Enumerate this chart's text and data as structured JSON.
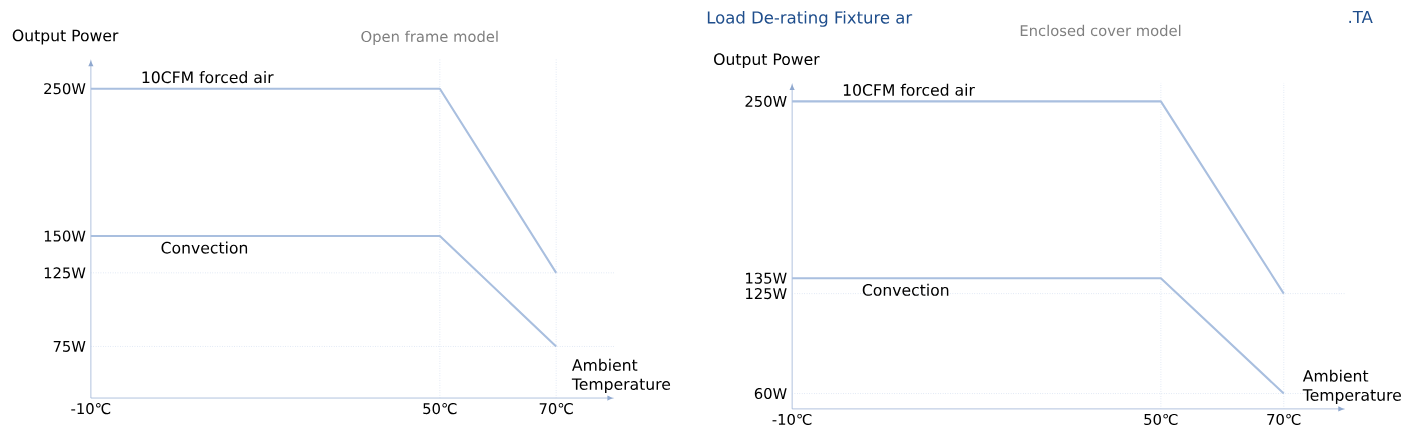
{
  "chart_data": [
    {
      "type": "line",
      "subtitle": "Open frame model",
      "xlabel": "Ambient Temperature",
      "ylabel": "Output Power",
      "xlim": [
        -10,
        80
      ],
      "ylim": [
        40,
        270
      ],
      "xticks": [
        {
          "value": -10,
          "label": "-10℃"
        },
        {
          "value": 50,
          "label": "50℃"
        },
        {
          "value": 70,
          "label": "70℃"
        }
      ],
      "yticks": [
        {
          "value": 75,
          "label": "75W"
        },
        {
          "value": 125,
          "label": "125W"
        },
        {
          "value": 150,
          "label": "150W"
        },
        {
          "value": 250,
          "label": "250W"
        }
      ],
      "x": [
        -10,
        50,
        70
      ],
      "series": [
        {
          "name": "10CFM forced air",
          "color": "#a9bfdf",
          "values": [
            250,
            250,
            125
          ]
        },
        {
          "name": "Convection",
          "color": "#a9bfdf",
          "values": [
            150,
            150,
            75
          ]
        }
      ],
      "ref_lines": [
        {
          "axis": "y",
          "value": 125,
          "color": "#c5d3ea",
          "line_style": "dotted"
        },
        {
          "axis": "y",
          "value": 75,
          "color": "#c5d3ea",
          "line_style": "dotted"
        },
        {
          "axis": "x",
          "value": 50,
          "color": "#c5d3ea",
          "line_style": "dotted"
        },
        {
          "axis": "x",
          "value": 70,
          "color": "#c5d3ea",
          "line_style": "dotted"
        }
      ]
    },
    {
      "type": "line",
      "title": "Load De-rating Fixture ar",
      "subtitle": "Enclosed cover model",
      "annotations": [
        ".TA"
      ],
      "xlabel": "Ambient Temperature",
      "ylabel": "Output Power",
      "xlim": [
        -10,
        80
      ],
      "ylim": [
        50,
        262
      ],
      "xticks": [
        {
          "value": -10,
          "label": "-10℃"
        },
        {
          "value": 50,
          "label": "50℃"
        },
        {
          "value": 70,
          "label": "70℃"
        }
      ],
      "yticks": [
        {
          "value": 60,
          "label": "60W"
        },
        {
          "value": 125,
          "label": "125W"
        },
        {
          "value": 135,
          "label": "135W"
        },
        {
          "value": 250,
          "label": "250W"
        }
      ],
      "x": [
        -10,
        50,
        70
      ],
      "series": [
        {
          "name": "10CFM forced air",
          "color": "#a9bfdf",
          "values": [
            250,
            250,
            125
          ]
        },
        {
          "name": "Convection",
          "color": "#a9bfdf",
          "values": [
            135,
            135,
            60
          ]
        }
      ],
      "ref_lines": [
        {
          "axis": "y",
          "value": 125,
          "color": "#c5d3ea",
          "line_style": "dotted"
        },
        {
          "axis": "y",
          "value": 60,
          "color": "#c5d3ea",
          "line_style": "dotted"
        },
        {
          "axis": "x",
          "value": 50,
          "color": "#c5d3ea",
          "line_style": "dotted"
        },
        {
          "axis": "x",
          "value": 70,
          "color": "#c5d3ea",
          "line_style": "dotted"
        }
      ]
    }
  ]
}
